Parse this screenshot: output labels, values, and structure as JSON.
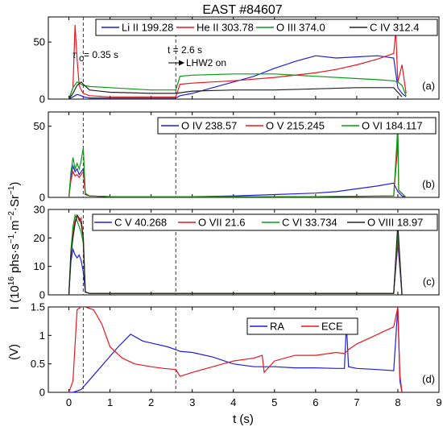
{
  "title": "EAST #84607",
  "xlabel": "t (s)",
  "ylabel_counts": "I (10",
  "ylabel_counts_exp": "16",
  "ylabel_counts_rest": " phs·s",
  "ylabel_counts_e1": "−1",
  "ylabel_counts_m": "·m",
  "ylabel_counts_e2": "−2",
  "ylabel_counts_sr": "·Sr",
  "ylabel_counts_e3": "−1",
  "ylabel_counts_end": ")",
  "ylabel_volts": "(V)",
  "annotations": {
    "tau_sym": "τ",
    "tau_sub": "c",
    "tau_val": " = 0.35 s",
    "t_label": "t = 2.6 s",
    "lhw_label": "LHW2 on"
  },
  "colors": {
    "blue": "#1f1fdc",
    "red": "#e8171f",
    "green": "#0a9a16",
    "black": "#222222"
  },
  "chart_data": [
    {
      "type": "line",
      "panel_label": "(a)",
      "xlim": [
        -0.5,
        9
      ],
      "ylim": [
        0,
        72
      ],
      "yticks": [
        0,
        50
      ],
      "legend_placement": "top",
      "series": [
        {
          "name": "Li II 199.28",
          "color": "#1f1fdc",
          "x": [
            0,
            0.1,
            0.2,
            0.3,
            0.35,
            0.5,
            1,
            1.5,
            2,
            2.5,
            2.6,
            2.7,
            3,
            3.5,
            4,
            4.5,
            5,
            5.5,
            6,
            6.5,
            7,
            7.5,
            7.9,
            8.0,
            8.1,
            8.2
          ],
          "y": [
            0,
            2,
            4,
            3,
            2,
            1,
            1,
            1,
            1,
            1,
            1,
            3,
            5,
            10,
            15,
            20,
            27,
            33,
            38,
            36,
            37,
            38,
            36,
            10,
            5,
            2
          ]
        },
        {
          "name": "He II 303.78",
          "color": "#e8171f",
          "x": [
            0,
            0.1,
            0.15,
            0.2,
            0.25,
            0.3,
            0.35,
            0.5,
            1,
            1.5,
            2,
            2.5,
            2.6,
            2.7,
            3,
            4,
            5,
            6,
            6.5,
            7,
            7.5,
            7.9,
            7.95,
            8.0,
            8.1,
            8.2
          ],
          "y": [
            0,
            10,
            65,
            35,
            12,
            8,
            5,
            3,
            2,
            2,
            2,
            2,
            2,
            13,
            14,
            16,
            19,
            23,
            26,
            30,
            35,
            40,
            60,
            15,
            30,
            5
          ]
        },
        {
          "name": "O III 374.0",
          "color": "#0a9a16",
          "x": [
            0,
            0.1,
            0.2,
            0.3,
            0.35,
            0.5,
            1,
            1.5,
            2,
            2.5,
            2.6,
            2.7,
            3,
            4,
            5,
            6,
            7,
            7.5,
            7.9,
            8.0,
            8.1,
            8.2
          ],
          "y": [
            0,
            10,
            15,
            13,
            12,
            11,
            10,
            9,
            8,
            8,
            8,
            20,
            21,
            22,
            22,
            20,
            18,
            17,
            16,
            15,
            12,
            3
          ]
        },
        {
          "name": "C IV 312.4",
          "color": "#222222",
          "x": [
            0,
            0.1,
            0.2,
            0.3,
            0.35,
            0.5,
            1,
            2,
            2.6,
            3,
            4,
            5,
            6,
            7,
            7.9,
            8.0,
            8.1
          ],
          "y": [
            0,
            5,
            12,
            15,
            13,
            8,
            6,
            5,
            5,
            7,
            8,
            8,
            9,
            10,
            10,
            6,
            2
          ]
        }
      ]
    },
    {
      "type": "line",
      "panel_label": "(b)",
      "xlim": [
        -0.5,
        9
      ],
      "ylim": [
        0,
        60
      ],
      "yticks": [
        0,
        50
      ],
      "legend_placement": "top",
      "series": [
        {
          "name": "O IV 238.57",
          "color": "#1f1fdc",
          "x": [
            0,
            0.05,
            0.1,
            0.15,
            0.2,
            0.25,
            0.3,
            0.35,
            0.4,
            0.5,
            1,
            2,
            3,
            4,
            5,
            6,
            6.5,
            7,
            7.5,
            7.9,
            8.0,
            8.1,
            8.2
          ],
          "y": [
            0,
            15,
            22,
            18,
            20,
            16,
            18,
            20,
            2,
            1,
            0.5,
            0.5,
            0.5,
            1,
            2,
            3,
            4,
            6,
            8,
            10,
            4,
            1,
            0
          ]
        },
        {
          "name": "O V 215.245",
          "color": "#e8171f",
          "x": [
            0,
            0.05,
            0.1,
            0.15,
            0.2,
            0.25,
            0.3,
            0.35,
            0.4,
            0.5,
            1,
            3,
            6,
            7.9,
            7.98,
            8.0,
            8.02,
            8.2
          ],
          "y": [
            0,
            12,
            18,
            15,
            16,
            14,
            16,
            18,
            2,
            1,
            0.5,
            0.5,
            0.5,
            1,
            30,
            45,
            5,
            0
          ]
        },
        {
          "name": "O VI 184.117",
          "color": "#0a9a16",
          "x": [
            0,
            0.05,
            0.1,
            0.15,
            0.2,
            0.25,
            0.3,
            0.35,
            0.4,
            0.5,
            1,
            3,
            6,
            7.9,
            7.98,
            8.0,
            8.02,
            8.2
          ],
          "y": [
            0,
            18,
            28,
            20,
            24,
            20,
            26,
            35,
            3,
            1,
            0.5,
            0.5,
            0.5,
            1,
            40,
            52,
            5,
            0
          ]
        }
      ]
    },
    {
      "type": "line",
      "panel_label": "(c)",
      "xlim": [
        -0.5,
        9
      ],
      "ylim": [
        0,
        30
      ],
      "yticks": [
        0,
        10,
        20,
        30
      ],
      "legend_placement": "top",
      "series": [
        {
          "name": "C V 40.268",
          "color": "#1f1fdc",
          "x": [
            0,
            0.05,
            0.1,
            0.15,
            0.2,
            0.25,
            0.3,
            0.35,
            0.4,
            0.5,
            2,
            4,
            6,
            7.9,
            8.0,
            8.1
          ],
          "y": [
            0,
            12,
            16,
            14,
            13,
            14,
            12,
            8,
            1,
            0.5,
            0.5,
            0.5,
            0.5,
            0.5,
            18,
            0
          ]
        },
        {
          "name": "O VII 21.6",
          "color": "#e8171f",
          "x": [
            0,
            0.05,
            0.1,
            0.15,
            0.2,
            0.25,
            0.3,
            0.35,
            0.4,
            0.5,
            2,
            4,
            6,
            7.9,
            8.0,
            8.1
          ],
          "y": [
            0,
            15,
            22,
            26,
            28,
            26,
            27,
            20,
            1,
            0.5,
            0.5,
            0.5,
            0.5,
            0.5,
            20,
            0
          ]
        },
        {
          "name": "C VI 33.734",
          "color": "#0a9a16",
          "x": [
            0,
            0.05,
            0.1,
            0.15,
            0.2,
            0.25,
            0.3,
            0.35,
            0.4,
            0.5,
            2,
            4,
            6,
            7.9,
            8.0,
            8.1
          ],
          "y": [
            0,
            16,
            24,
            28,
            26,
            24,
            22,
            18,
            1,
            0.5,
            0.5,
            0.5,
            0.5,
            0.5,
            22,
            0
          ]
        },
        {
          "name": "O VIII 18.97",
          "color": "#222222",
          "x": [
            0,
            0.05,
            0.1,
            0.15,
            0.2,
            0.25,
            0.3,
            0.35,
            0.4,
            0.5,
            2,
            4,
            6,
            7.9,
            8.0,
            8.1
          ],
          "y": [
            0,
            14,
            20,
            25,
            28,
            27,
            25,
            20,
            1,
            0.5,
            0.5,
            0.5,
            0.5,
            0.5,
            25,
            0
          ]
        }
      ]
    },
    {
      "type": "line",
      "panel_label": "(d)",
      "xlim": [
        -0.5,
        9
      ],
      "ylim": [
        0,
        1.5
      ],
      "yticks": [
        0,
        0.5,
        1,
        1.5
      ],
      "legend_placement": "top",
      "series": [
        {
          "name": "RA",
          "color": "#1f1fdc",
          "x": [
            0,
            0.1,
            0.3,
            0.6,
            0.9,
            1.2,
            1.5,
            1.8,
            2.1,
            2.4,
            2.6,
            2.7,
            3,
            3.5,
            4,
            4.5,
            5,
            5.5,
            6,
            6.5,
            6.7,
            6.75,
            6.8,
            7,
            7.5,
            7.9,
            8.0,
            8.05,
            8.1
          ],
          "y": [
            0,
            0,
            0.05,
            0.3,
            0.55,
            0.8,
            1.02,
            0.9,
            0.85,
            0.8,
            0.75,
            0.72,
            0.7,
            0.62,
            0.5,
            0.45,
            0.45,
            0.43,
            0.43,
            0.42,
            0.42,
            1.2,
            0.45,
            0.42,
            0.4,
            0.38,
            1.5,
            0.2,
            0
          ]
        },
        {
          "name": "ECE",
          "color": "#e8171f",
          "x": [
            0,
            0.1,
            0.2,
            0.3,
            0.4,
            0.6,
            0.8,
            1,
            1.3,
            1.6,
            2,
            2.3,
            2.6,
            2.7,
            3,
            3.5,
            4,
            4.5,
            4.7,
            4.75,
            5,
            5.5,
            6,
            6.5,
            6.7,
            6.8,
            7,
            7.3,
            7.6,
            7.9,
            8.0,
            8.05,
            8.1
          ],
          "y": [
            0,
            0.2,
            1.45,
            1.5,
            1.5,
            1.45,
            1.2,
            0.8,
            0.6,
            0.5,
            0.45,
            0.42,
            0.4,
            0.28,
            0.35,
            0.45,
            0.55,
            0.6,
            0.65,
            0.35,
            0.55,
            0.65,
            0.65,
            0.7,
            0.68,
            0.75,
            0.85,
            0.95,
            1.05,
            1.15,
            1.5,
            0.3,
            0
          ]
        }
      ]
    }
  ]
}
